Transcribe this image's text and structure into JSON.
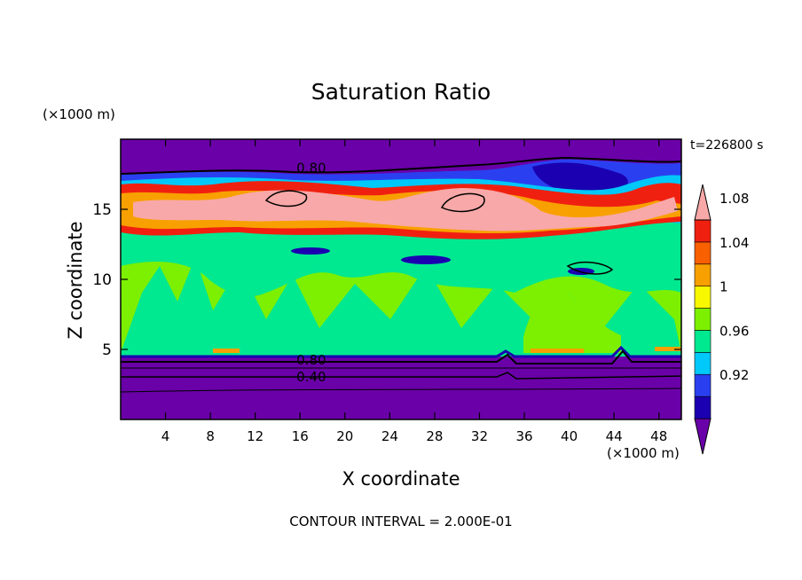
{
  "chart_data": {
    "type": "heatmap",
    "title": "Saturation Ratio",
    "xlabel": "X coordinate",
    "ylabel": "Z coordinate",
    "x_unit": "(×1000 m)",
    "y_unit": "(×1000 m)",
    "time_label": "t=226800 s",
    "footer": "CONTOUR INTERVAL = 2.000E-01",
    "xlim": [
      0,
      50
    ],
    "ylim": [
      0,
      20
    ],
    "x_ticks": [
      "4",
      "8",
      "12",
      "16",
      "20",
      "24",
      "28",
      "32",
      "36",
      "40",
      "44",
      "48"
    ],
    "y_ticks": [
      "5",
      "10",
      "15"
    ],
    "contour_labels": [
      {
        "text": "0.80",
        "x": 17,
        "z": 18
      },
      {
        "text": "0.80",
        "x": 17,
        "z": 4.3
      },
      {
        "text": "0.40",
        "x": 17,
        "z": 3.1
      }
    ],
    "colorbar": {
      "levels": [
        "0.92",
        "0.96",
        "1",
        "1.04",
        "1.08"
      ],
      "bins": [
        {
          "color": "#6a00a8"
        },
        {
          "color": "#1a00b0"
        },
        {
          "color": "#2a40f0"
        },
        {
          "color": "#00c8f8"
        },
        {
          "color": "#00e890"
        },
        {
          "color": "#7cf000"
        },
        {
          "color": "#f8f800"
        },
        {
          "color": "#f8a000"
        },
        {
          "color": "#f86000"
        },
        {
          "color": "#f02010"
        },
        {
          "color": "#f8a8a8"
        }
      ]
    }
  }
}
